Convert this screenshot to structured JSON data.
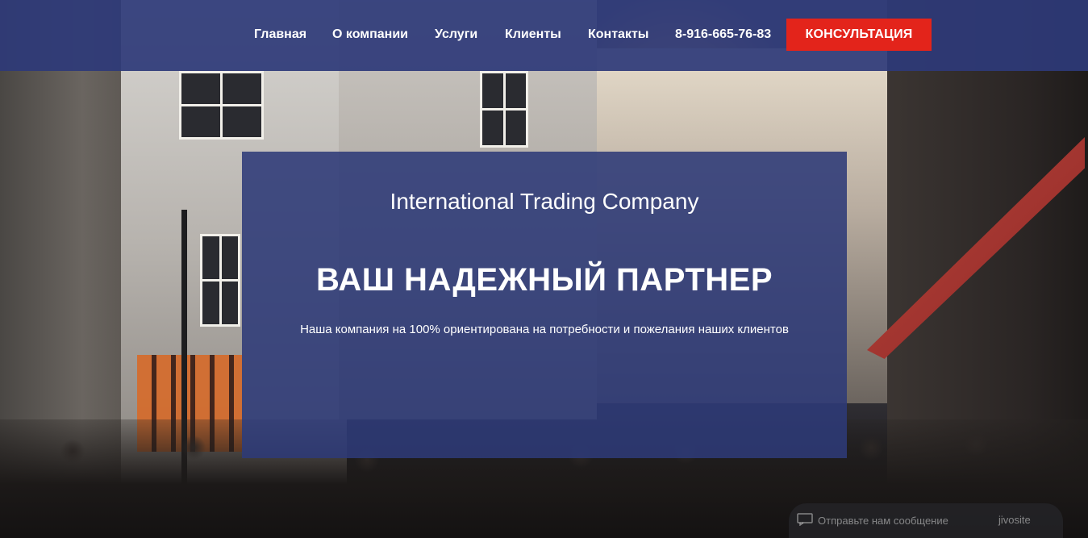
{
  "nav": {
    "items": [
      {
        "label": "Главная"
      },
      {
        "label": "О компании"
      },
      {
        "label": "Услуги"
      },
      {
        "label": "Клиенты"
      },
      {
        "label": "Контакты"
      }
    ],
    "phone": "8-916-665-76-83",
    "cta_label": "КОНСУЛЬТАЦИЯ"
  },
  "hero": {
    "company": "International Trading Company",
    "title": "ВАШ НАДЕЖНЫЙ ПАРТНЕР",
    "subtitle": "Наша компания на 100% ориентирована на потребности и пожелания наших клиентов"
  },
  "chat": {
    "placeholder": "Отправьте нам сообщение",
    "brand": "jivosite"
  },
  "colors": {
    "header_bg": "#2e3a78",
    "cta_bg": "#e3241b",
    "text": "#ffffff"
  }
}
